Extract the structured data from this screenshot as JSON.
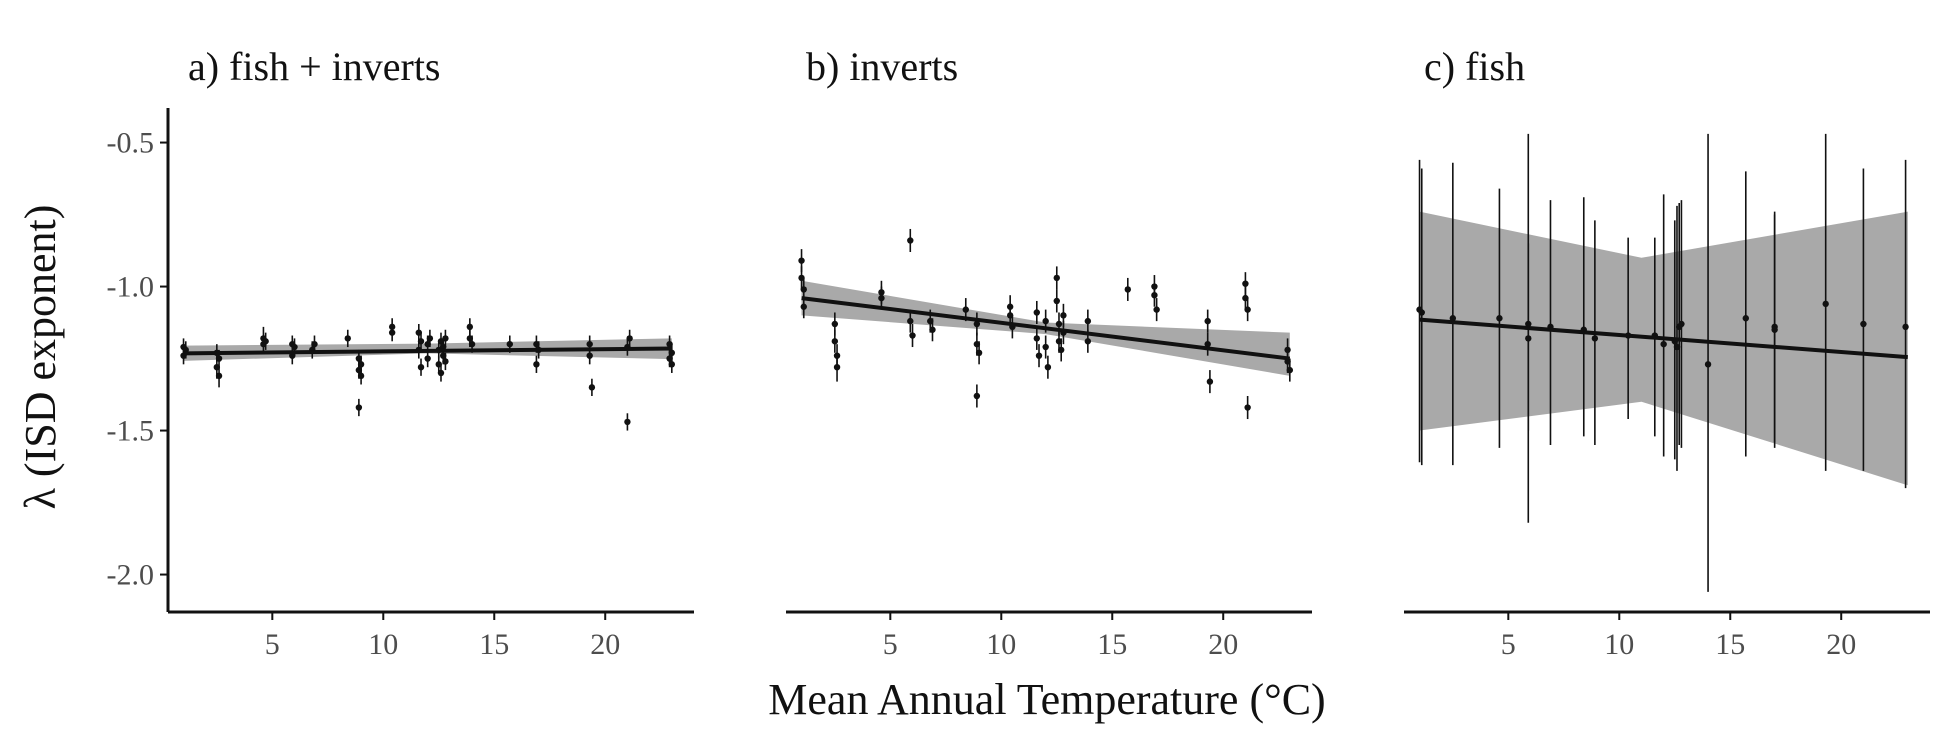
{
  "chart_data": {
    "type": "scatter",
    "xlabel": "Mean Annual Temperature (°C)",
    "ylabel": "λ (ISD exponent)",
    "xlim": [
      0.3,
      24.0
    ],
    "ylim": [
      -2.13,
      -0.38
    ],
    "xticks": [
      5,
      10,
      15,
      20
    ],
    "yticks": [
      -0.5,
      -1.0,
      -1.5,
      -2.0
    ],
    "grid": false,
    "shared_y_axis": true,
    "panels": [
      {
        "title": "a) fish + inverts",
        "fit": {
          "x": [
            1.0,
            23.0
          ],
          "y": [
            -1.232,
            -1.215
          ],
          "ci_x": [
            1.0,
            12.0,
            23.0
          ],
          "ci_lo": [
            -1.258,
            -1.232,
            -1.252
          ],
          "ci_hi": [
            -1.205,
            -1.198,
            -1.18
          ]
        },
        "points": [
          {
            "x": 1.0,
            "y": -1.21,
            "lo": -1.24,
            "hi": -1.18
          },
          {
            "x": 1.0,
            "y": -1.24,
            "lo": -1.27,
            "hi": -1.21
          },
          {
            "x": 1.1,
            "y": -1.22,
            "lo": -1.25,
            "hi": -1.19
          },
          {
            "x": 2.5,
            "y": -1.23,
            "lo": -1.26,
            "hi": -1.2
          },
          {
            "x": 2.5,
            "y": -1.28,
            "lo": -1.32,
            "hi": -1.25
          },
          {
            "x": 2.6,
            "y": -1.31,
            "lo": -1.35,
            "hi": -1.28
          },
          {
            "x": 2.6,
            "y": -1.25,
            "lo": -1.28,
            "hi": -1.22
          },
          {
            "x": 4.6,
            "y": -1.18,
            "lo": -1.21,
            "hi": -1.14
          },
          {
            "x": 4.6,
            "y": -1.2,
            "lo": -1.23,
            "hi": -1.17
          },
          {
            "x": 4.7,
            "y": -1.19,
            "lo": -1.22,
            "hi": -1.16
          },
          {
            "x": 5.9,
            "y": -1.2,
            "lo": -1.23,
            "hi": -1.17
          },
          {
            "x": 5.9,
            "y": -1.24,
            "lo": -1.27,
            "hi": -1.21
          },
          {
            "x": 6.0,
            "y": -1.21,
            "lo": -1.24,
            "hi": -1.18
          },
          {
            "x": 6.8,
            "y": -1.22,
            "lo": -1.25,
            "hi": -1.19
          },
          {
            "x": 6.9,
            "y": -1.2,
            "lo": -1.23,
            "hi": -1.17
          },
          {
            "x": 8.4,
            "y": -1.18,
            "lo": -1.21,
            "hi": -1.15
          },
          {
            "x": 8.9,
            "y": -1.25,
            "lo": -1.28,
            "hi": -1.22
          },
          {
            "x": 8.9,
            "y": -1.29,
            "lo": -1.32,
            "hi": -1.26
          },
          {
            "x": 8.9,
            "y": -1.42,
            "lo": -1.45,
            "hi": -1.39
          },
          {
            "x": 9.0,
            "y": -1.31,
            "lo": -1.34,
            "hi": -1.28
          },
          {
            "x": 9.0,
            "y": -1.27,
            "lo": -1.3,
            "hi": -1.24
          },
          {
            "x": 10.4,
            "y": -1.14,
            "lo": -1.17,
            "hi": -1.11
          },
          {
            "x": 10.4,
            "y": -1.16,
            "lo": -1.19,
            "hi": -1.13
          },
          {
            "x": 11.6,
            "y": -1.16,
            "lo": -1.19,
            "hi": -1.13
          },
          {
            "x": 11.6,
            "y": -1.22,
            "lo": -1.25,
            "hi": -1.19
          },
          {
            "x": 11.7,
            "y": -1.28,
            "lo": -1.31,
            "hi": -1.25
          },
          {
            "x": 11.7,
            "y": -1.19,
            "lo": -1.22,
            "hi": -1.16
          },
          {
            "x": 12.0,
            "y": -1.2,
            "lo": -1.23,
            "hi": -1.17
          },
          {
            "x": 12.0,
            "y": -1.25,
            "lo": -1.28,
            "hi": -1.22
          },
          {
            "x": 12.1,
            "y": -1.18,
            "lo": -1.21,
            "hi": -1.15
          },
          {
            "x": 12.5,
            "y": -1.22,
            "lo": -1.25,
            "hi": -1.19
          },
          {
            "x": 12.5,
            "y": -1.27,
            "lo": -1.3,
            "hi": -1.24
          },
          {
            "x": 12.6,
            "y": -1.3,
            "lo": -1.33,
            "hi": -1.27
          },
          {
            "x": 12.6,
            "y": -1.19,
            "lo": -1.22,
            "hi": -1.16
          },
          {
            "x": 12.7,
            "y": -1.24,
            "lo": -1.27,
            "hi": -1.21
          },
          {
            "x": 12.7,
            "y": -1.21,
            "lo": -1.24,
            "hi": -1.18
          },
          {
            "x": 12.8,
            "y": -1.18,
            "lo": -1.21,
            "hi": -1.15
          },
          {
            "x": 12.8,
            "y": -1.26,
            "lo": -1.29,
            "hi": -1.23
          },
          {
            "x": 13.9,
            "y": -1.18,
            "lo": -1.21,
            "hi": -1.15
          },
          {
            "x": 13.9,
            "y": -1.14,
            "lo": -1.17,
            "hi": -1.11
          },
          {
            "x": 14.0,
            "y": -1.2,
            "lo": -1.23,
            "hi": -1.17
          },
          {
            "x": 15.7,
            "y": -1.2,
            "lo": -1.23,
            "hi": -1.17
          },
          {
            "x": 16.9,
            "y": -1.2,
            "lo": -1.23,
            "hi": -1.17
          },
          {
            "x": 16.9,
            "y": -1.27,
            "lo": -1.3,
            "hi": -1.24
          },
          {
            "x": 17.0,
            "y": -1.22,
            "lo": -1.25,
            "hi": -1.19
          },
          {
            "x": 19.3,
            "y": -1.2,
            "lo": -1.23,
            "hi": -1.17
          },
          {
            "x": 19.3,
            "y": -1.24,
            "lo": -1.27,
            "hi": -1.21
          },
          {
            "x": 19.4,
            "y": -1.35,
            "lo": -1.38,
            "hi": -1.32
          },
          {
            "x": 21.0,
            "y": -1.21,
            "lo": -1.24,
            "hi": -1.18
          },
          {
            "x": 21.0,
            "y": -1.47,
            "lo": -1.5,
            "hi": -1.44
          },
          {
            "x": 21.1,
            "y": -1.18,
            "lo": -1.21,
            "hi": -1.15
          },
          {
            "x": 22.9,
            "y": -1.2,
            "lo": -1.23,
            "hi": -1.17
          },
          {
            "x": 22.9,
            "y": -1.25,
            "lo": -1.28,
            "hi": -1.22
          },
          {
            "x": 23.0,
            "y": -1.23,
            "lo": -1.26,
            "hi": -1.2
          },
          {
            "x": 23.0,
            "y": -1.27,
            "lo": -1.3,
            "hi": -1.24
          }
        ]
      },
      {
        "title": "b) inverts",
        "fit": {
          "x": [
            1.0,
            23.0
          ],
          "y": [
            -1.04,
            -1.25
          ],
          "ci_x": [
            1.0,
            12.0,
            23.0
          ],
          "ci_lo": [
            -1.1,
            -1.165,
            -1.31
          ],
          "ci_hi": [
            -0.98,
            -1.125,
            -1.16
          ]
        },
        "points": [
          {
            "x": 1.0,
            "y": -0.91,
            "lo": -0.95,
            "hi": -0.87
          },
          {
            "x": 1.0,
            "y": -0.97,
            "lo": -1.01,
            "hi": -0.93
          },
          {
            "x": 1.1,
            "y": -1.01,
            "lo": -1.05,
            "hi": -0.97
          },
          {
            "x": 1.1,
            "y": -1.07,
            "lo": -1.11,
            "hi": -1.03
          },
          {
            "x": 2.5,
            "y": -1.13,
            "lo": -1.17,
            "hi": -1.09
          },
          {
            "x": 2.5,
            "y": -1.19,
            "lo": -1.23,
            "hi": -1.15
          },
          {
            "x": 2.6,
            "y": -1.24,
            "lo": -1.28,
            "hi": -1.2
          },
          {
            "x": 2.6,
            "y": -1.28,
            "lo": -1.33,
            "hi": -1.24
          },
          {
            "x": 4.6,
            "y": -1.02,
            "lo": -1.06,
            "hi": -0.98
          },
          {
            "x": 4.6,
            "y": -1.04,
            "lo": -1.08,
            "hi": -1.0
          },
          {
            "x": 5.9,
            "y": -0.84,
            "lo": -0.88,
            "hi": -0.8
          },
          {
            "x": 5.9,
            "y": -1.12,
            "lo": -1.16,
            "hi": -1.08
          },
          {
            "x": 6.0,
            "y": -1.17,
            "lo": -1.21,
            "hi": -1.13
          },
          {
            "x": 6.8,
            "y": -1.12,
            "lo": -1.16,
            "hi": -1.08
          },
          {
            "x": 6.9,
            "y": -1.15,
            "lo": -1.19,
            "hi": -1.11
          },
          {
            "x": 8.4,
            "y": -1.08,
            "lo": -1.12,
            "hi": -1.04
          },
          {
            "x": 8.9,
            "y": -1.13,
            "lo": -1.17,
            "hi": -1.09
          },
          {
            "x": 8.9,
            "y": -1.2,
            "lo": -1.24,
            "hi": -1.16
          },
          {
            "x": 8.9,
            "y": -1.38,
            "lo": -1.42,
            "hi": -1.34
          },
          {
            "x": 9.0,
            "y": -1.23,
            "lo": -1.27,
            "hi": -1.19
          },
          {
            "x": 10.4,
            "y": -1.07,
            "lo": -1.11,
            "hi": -1.03
          },
          {
            "x": 10.4,
            "y": -1.1,
            "lo": -1.14,
            "hi": -1.06
          },
          {
            "x": 10.5,
            "y": -1.14,
            "lo": -1.18,
            "hi": -1.1
          },
          {
            "x": 11.6,
            "y": -1.09,
            "lo": -1.13,
            "hi": -1.05
          },
          {
            "x": 11.6,
            "y": -1.18,
            "lo": -1.22,
            "hi": -1.14
          },
          {
            "x": 11.7,
            "y": -1.24,
            "lo": -1.28,
            "hi": -1.2
          },
          {
            "x": 12.0,
            "y": -1.12,
            "lo": -1.16,
            "hi": -1.08
          },
          {
            "x": 12.0,
            "y": -1.21,
            "lo": -1.25,
            "hi": -1.17
          },
          {
            "x": 12.1,
            "y": -1.28,
            "lo": -1.32,
            "hi": -1.24
          },
          {
            "x": 12.5,
            "y": -0.97,
            "lo": -1.01,
            "hi": -0.93
          },
          {
            "x": 12.5,
            "y": -1.05,
            "lo": -1.09,
            "hi": -1.01
          },
          {
            "x": 12.6,
            "y": -1.13,
            "lo": -1.17,
            "hi": -1.09
          },
          {
            "x": 12.6,
            "y": -1.19,
            "lo": -1.23,
            "hi": -1.15
          },
          {
            "x": 12.7,
            "y": -1.22,
            "lo": -1.26,
            "hi": -1.18
          },
          {
            "x": 12.8,
            "y": -1.1,
            "lo": -1.14,
            "hi": -1.06
          },
          {
            "x": 12.8,
            "y": -1.16,
            "lo": -1.2,
            "hi": -1.12
          },
          {
            "x": 13.9,
            "y": -1.12,
            "lo": -1.16,
            "hi": -1.08
          },
          {
            "x": 13.9,
            "y": -1.19,
            "lo": -1.23,
            "hi": -1.15
          },
          {
            "x": 15.7,
            "y": -1.01,
            "lo": -1.05,
            "hi": -0.97
          },
          {
            "x": 16.9,
            "y": -1.0,
            "lo": -1.04,
            "hi": -0.96
          },
          {
            "x": 16.9,
            "y": -1.03,
            "lo": -1.07,
            "hi": -0.99
          },
          {
            "x": 17.0,
            "y": -1.08,
            "lo": -1.12,
            "hi": -1.04
          },
          {
            "x": 19.3,
            "y": -1.12,
            "lo": -1.16,
            "hi": -1.08
          },
          {
            "x": 19.3,
            "y": -1.2,
            "lo": -1.24,
            "hi": -1.16
          },
          {
            "x": 19.4,
            "y": -1.33,
            "lo": -1.37,
            "hi": -1.29
          },
          {
            "x": 21.0,
            "y": -0.99,
            "lo": -1.03,
            "hi": -0.95
          },
          {
            "x": 21.0,
            "y": -1.04,
            "lo": -1.08,
            "hi": -1.0
          },
          {
            "x": 21.1,
            "y": -1.08,
            "lo": -1.12,
            "hi": -1.04
          },
          {
            "x": 21.1,
            "y": -1.42,
            "lo": -1.46,
            "hi": -1.38
          },
          {
            "x": 22.9,
            "y": -1.22,
            "lo": -1.26,
            "hi": -1.18
          },
          {
            "x": 22.9,
            "y": -1.26,
            "lo": -1.3,
            "hi": -1.22
          },
          {
            "x": 23.0,
            "y": -1.29,
            "lo": -1.33,
            "hi": -1.25
          }
        ]
      },
      {
        "title": "c) fish",
        "fit": {
          "x": [
            1.0,
            23.0
          ],
          "y": [
            -1.115,
            -1.245
          ],
          "ci_x": [
            1.0,
            11.0,
            23.0
          ],
          "ci_lo": [
            -1.5,
            -1.4,
            -1.69
          ],
          "ci_hi": [
            -0.74,
            -0.9,
            -0.74
          ]
        },
        "points": [
          {
            "x": 1.0,
            "y": -1.08,
            "lo": -1.61,
            "hi": -0.56
          },
          {
            "x": 1.1,
            "y": -1.09,
            "lo": -1.62,
            "hi": -0.59
          },
          {
            "x": 2.5,
            "y": -1.11,
            "lo": -1.62,
            "hi": -0.57
          },
          {
            "x": 4.6,
            "y": -1.11,
            "lo": -1.56,
            "hi": -0.66
          },
          {
            "x": 5.9,
            "y": -1.13,
            "lo": -1.82,
            "hi": -0.47
          },
          {
            "x": 5.9,
            "y": -1.18,
            "lo": -1.5,
            "hi": -0.85
          },
          {
            "x": 6.9,
            "y": -1.14,
            "lo": -1.55,
            "hi": -0.7
          },
          {
            "x": 8.4,
            "y": -1.15,
            "lo": -1.52,
            "hi": -0.69
          },
          {
            "x": 8.9,
            "y": -1.18,
            "lo": -1.55,
            "hi": -0.77
          },
          {
            "x": 10.4,
            "y": -1.17,
            "lo": -1.46,
            "hi": -0.83
          },
          {
            "x": 11.6,
            "y": -1.17,
            "lo": -1.52,
            "hi": -0.83
          },
          {
            "x": 12.0,
            "y": -1.2,
            "lo": -1.59,
            "hi": -0.68
          },
          {
            "x": 12.5,
            "y": -1.19,
            "lo": -1.6,
            "hi": -0.77
          },
          {
            "x": 12.6,
            "y": -1.21,
            "lo": -1.64,
            "hi": -0.72
          },
          {
            "x": 12.7,
            "y": -1.14,
            "lo": -1.55,
            "hi": -0.71
          },
          {
            "x": 12.8,
            "y": -1.13,
            "lo": -1.56,
            "hi": -0.7
          },
          {
            "x": 14.0,
            "y": -1.27,
            "lo": -2.06,
            "hi": -0.47
          },
          {
            "x": 15.7,
            "y": -1.11,
            "lo": -1.59,
            "hi": -0.6
          },
          {
            "x": 17.0,
            "y": -1.14,
            "lo": -1.54,
            "hi": -0.75
          },
          {
            "x": 17.0,
            "y": -1.15,
            "lo": -1.56,
            "hi": -0.74
          },
          {
            "x": 19.3,
            "y": -1.06,
            "lo": -1.64,
            "hi": -0.47
          },
          {
            "x": 21.0,
            "y": -1.13,
            "lo": -1.64,
            "hi": -0.59
          },
          {
            "x": 22.9,
            "y": -1.14,
            "lo": -1.7,
            "hi": -0.56
          }
        ]
      }
    ]
  }
}
